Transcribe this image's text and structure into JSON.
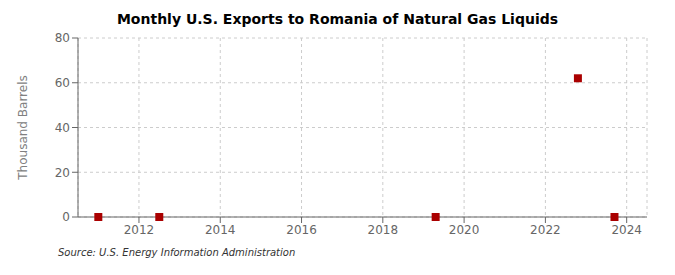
{
  "chart_data": {
    "type": "scatter",
    "title": "Monthly U.S. Exports to Romania of Natural Gas Liquids",
    "ylabel": "Thousand Barrels",
    "annotations": [
      "Source: U.S. Energy Information Administration"
    ],
    "x": [
      2011.0,
      2012.5,
      2019.3,
      2022.8,
      2023.7
    ],
    "values": [
      0,
      0,
      0,
      62,
      0
    ],
    "color": "#aa0000",
    "marker": "square",
    "xlim": [
      2010.5,
      2024.5
    ],
    "ylim": [
      0,
      80
    ],
    "xticks": [
      2012,
      2014,
      2016,
      2018,
      2020,
      2022,
      2024
    ],
    "yticks": [
      0,
      20,
      40,
      60,
      80
    ],
    "grid": true
  }
}
